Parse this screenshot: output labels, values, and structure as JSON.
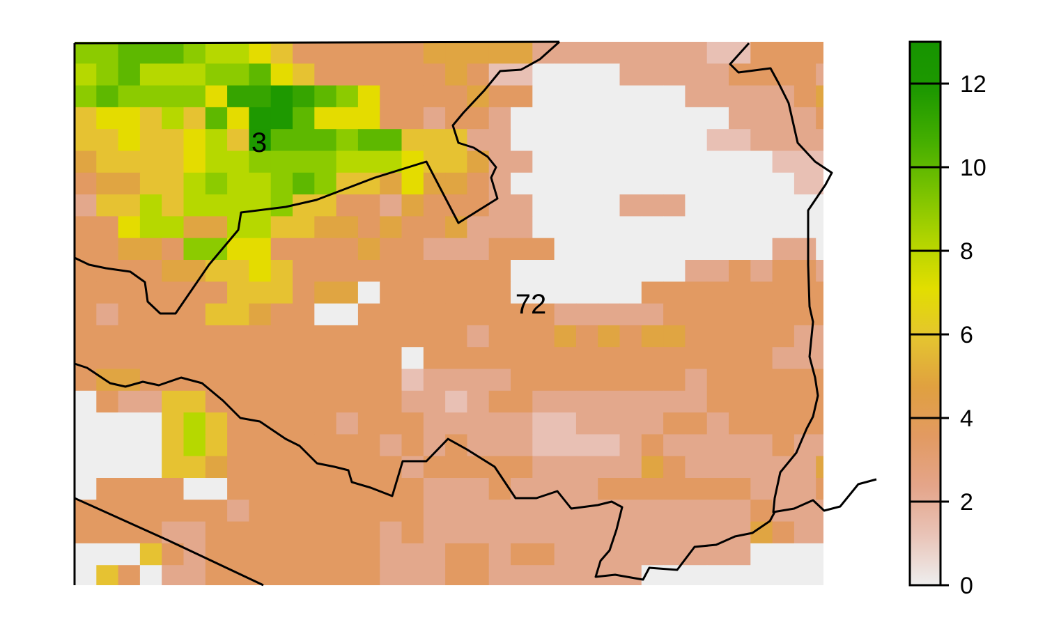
{
  "map": {
    "palette": [
      "#eeeeee",
      "#e8c0b4",
      "#e3a88c",
      "#e29a62",
      "#e0a542",
      "#e6c232",
      "#e4dc00",
      "#b6d800",
      "#8ccb00",
      "#5eb800",
      "#36a400",
      "#1e9900"
    ],
    "raster_rows": [
      "889998776533333344444222222221133333",
      "789777889653333334311000022222333323",
      "8988886AABA986333343300000002222234",
      "56657596BB9666332332000000000022223",
      "55655675B9998995552200000000011222221",
      "45555677888877765542200000000000111210",
      "344557877898554644320000000000000111200",
      "2557577778553324333220000222000000000",
      "3367744775544343342220000000000000000",
      "3344388663333433222333000000000022002",
      "33334455653333333333000000002232332210",
      "33333335553440333333000000333333333220",
      "32333355433003333333332222233333333210",
      "33333333333333333323334343443333322113",
      "3333333333333330333333333333333322211",
      "3443333333333331222233333333233333322",
      "0322553333333332212332222222233333322",
      "0000575333332333222221122223323333322",
      "0000575333333323232221111232222232233",
      "0000554333333332333332222243222222423",
      "0333300333333333222322223333333222323",
      "33333332333333332222222222222223222222",
      "33332233333333232222222222222224322222",
      "0005323333333322233233222222222000000",
      "0530223333333322233222222200000000000",
      "3000333333333333332222220000000000000",
      "2230000333332333322222221000000000000"
    ],
    "region_labels": [
      {
        "text": "3"
      },
      {
        "text": "72"
      }
    ],
    "frame_color": "#000000"
  },
  "legend": {
    "min": 0,
    "max": 13,
    "ticks": [
      "0",
      "2",
      "4",
      "6",
      "8",
      "10",
      "12"
    ],
    "gradient_stops": [
      "#eeeeee",
      "#e9c4b8",
      "#e4a58a",
      "#e29a62",
      "#e0a040",
      "#e4c430",
      "#e2de00",
      "#b0d400",
      "#78c200",
      "#44ae00",
      "#1e9900",
      "#169400"
    ]
  }
}
